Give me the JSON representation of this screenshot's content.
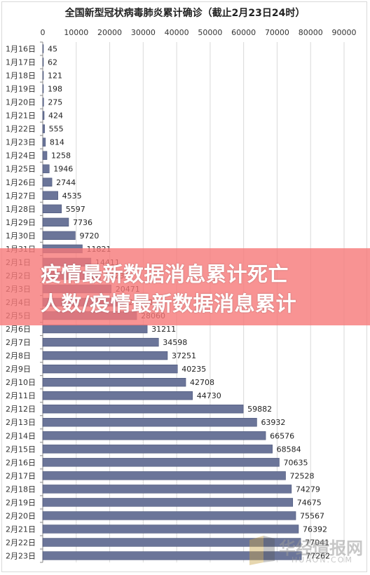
{
  "banner": {
    "line1": "疫情最新数据消息累计死亡",
    "line2": "人数/疫情最新数据消息累计"
  },
  "watermark": {
    "cn": "华经情报网",
    "en": "HUAON.COM",
    "logo_color": "#c8a24a"
  },
  "colors": {
    "bar": "#6b7599",
    "bar_stroke": "#3f4a70",
    "grid": "#d9d9d9",
    "axis": "#888888",
    "banner": "#f67878"
  },
  "chart_data": {
    "type": "bar",
    "orientation": "horizontal",
    "title": "全国新型冠状病毒肺炎累计确诊（截止2月23日24时）",
    "xlim": [
      0,
      90000
    ],
    "x_ticks": [
      0,
      10000,
      20000,
      30000,
      40000,
      50000,
      60000,
      70000,
      80000,
      90000
    ],
    "grid": true,
    "legend": "none",
    "categories": [
      "1月16日",
      "1月17日",
      "1月18日",
      "1月19日",
      "1月20日",
      "1月21日",
      "1月22日",
      "1月23日",
      "1月24日",
      "1月25日",
      "1月26日",
      "1月27日",
      "1月28日",
      "1月29日",
      "1月30日",
      "1月31日",
      "2月1日",
      "2月2日",
      "2月3日",
      "2月4日",
      "2月5日",
      "2月6日",
      "2月7日",
      "2月8日",
      "2月9日",
      "2月10日",
      "2月11日",
      "2月12日",
      "2月13日",
      "2月14日",
      "2月15日",
      "2月16日",
      "2月17日",
      "2月18日",
      "2月19日",
      "2月20日",
      "2月21日",
      "2月22日",
      "2月23日"
    ],
    "values": [
      45,
      62,
      121,
      198,
      275,
      424,
      555,
      814,
      1258,
      1946,
      2744,
      4535,
      5597,
      7736,
      9720,
      11821,
      14411,
      17238,
      20471,
      24363,
      28060,
      31211,
      34598,
      37251,
      40235,
      42708,
      44730,
      59882,
      63932,
      66576,
      68584,
      70635,
      72528,
      74279,
      74675,
      75567,
      76392,
      77041,
      77262
    ]
  }
}
